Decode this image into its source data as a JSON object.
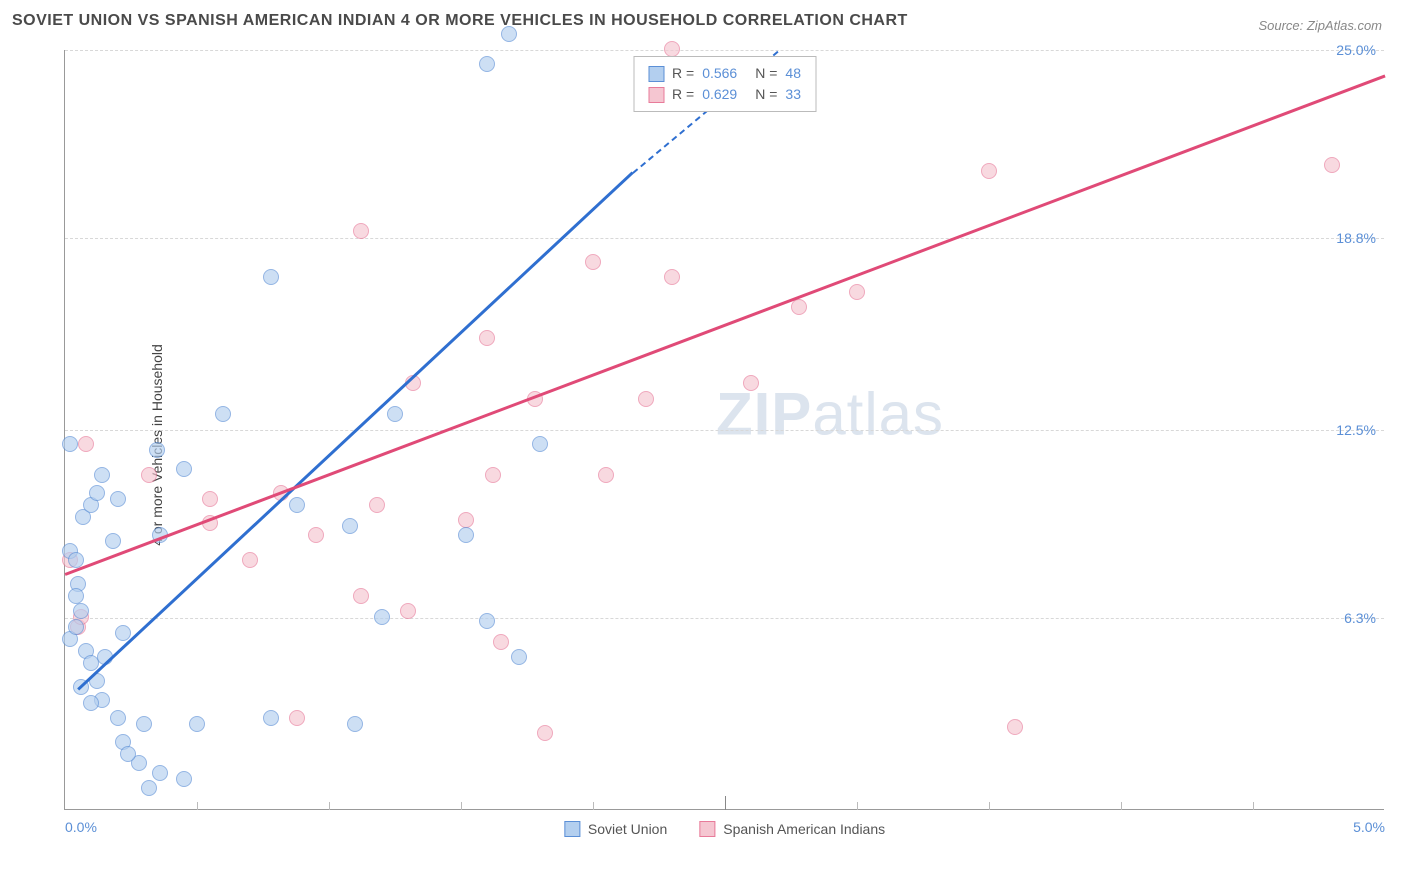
{
  "title": "SOVIET UNION VS SPANISH AMERICAN INDIAN 4 OR MORE VEHICLES IN HOUSEHOLD CORRELATION CHART",
  "source": "Source: ZipAtlas.com",
  "watermark_pre": "ZIP",
  "watermark_post": "atlas",
  "y_axis_label": "4 or more Vehicles in Household",
  "colors": {
    "series1_fill": "#b3cfef",
    "series1_stroke": "#5b8fd6",
    "series1_line": "#2f6fd0",
    "series2_fill": "#f5c6d1",
    "series2_stroke": "#e87b9a",
    "series2_line": "#e04a77",
    "grid": "#d8d8d8",
    "axis": "#999999",
    "tick_text": "#5b8fd6",
    "title_text": "#4a4a4a"
  },
  "axes": {
    "x_min": 0.0,
    "x_max": 5.0,
    "y_min": 0.0,
    "y_max": 25.0,
    "y_ticks": [
      6.3,
      12.5,
      18.8,
      25.0
    ],
    "y_tick_labels": [
      "6.3%",
      "12.5%",
      "18.8%",
      "25.0%"
    ],
    "x_ticks": [
      0.0,
      2.5,
      5.0
    ],
    "x_tick_labels": [
      "0.0%",
      "",
      "5.0%"
    ],
    "x_minor_gridlines": [
      0.5,
      1.0,
      1.5,
      2.0,
      2.5,
      3.0,
      3.5,
      4.0,
      4.5
    ]
  },
  "correlation_box": {
    "rows": [
      {
        "swatch_fill": "#b3cfef",
        "swatch_stroke": "#5b8fd6",
        "r_label": "R =",
        "r_value": "0.566",
        "n_label": "N =",
        "n_value": "48"
      },
      {
        "swatch_fill": "#f5c6d1",
        "swatch_stroke": "#e87b9a",
        "r_label": "R =",
        "r_value": "0.629",
        "n_label": "N =",
        "n_value": "33"
      }
    ]
  },
  "legend": {
    "items": [
      {
        "swatch_fill": "#b3cfef",
        "swatch_stroke": "#5b8fd6",
        "label": "Soviet Union"
      },
      {
        "swatch_fill": "#f5c6d1",
        "swatch_stroke": "#e87b9a",
        "label": "Spanish American Indians"
      }
    ]
  },
  "trend_lines": {
    "series1": {
      "x1": 0.05,
      "y1": 4.0,
      "x2": 2.15,
      "y2": 21.0,
      "x2_dash": 2.7,
      "y2_dash": 25.0,
      "color": "#2f6fd0"
    },
    "series2": {
      "x1": 0.0,
      "y1": 7.8,
      "x2": 5.0,
      "y2": 24.2,
      "color": "#e04a77"
    }
  },
  "series1_points": [
    [
      0.02,
      8.5
    ],
    [
      0.04,
      8.2
    ],
    [
      0.02,
      5.6
    ],
    [
      0.06,
      6.5
    ],
    [
      0.04,
      6.0
    ],
    [
      0.08,
      5.2
    ],
    [
      0.05,
      7.4
    ],
    [
      0.1,
      4.8
    ],
    [
      0.12,
      4.2
    ],
    [
      0.14,
      3.6
    ],
    [
      0.2,
      3.0
    ],
    [
      0.22,
      2.2
    ],
    [
      0.28,
      1.5
    ],
    [
      0.32,
      0.7
    ],
    [
      0.36,
      1.2
    ],
    [
      0.3,
      2.8
    ],
    [
      0.24,
      1.8
    ],
    [
      0.15,
      5.0
    ],
    [
      0.07,
      9.6
    ],
    [
      0.1,
      10.0
    ],
    [
      0.12,
      10.4
    ],
    [
      0.18,
      8.8
    ],
    [
      0.2,
      10.2
    ],
    [
      0.14,
      11.0
    ],
    [
      0.02,
      12.0
    ],
    [
      0.22,
      5.8
    ],
    [
      0.36,
      9.0
    ],
    [
      0.45,
      11.2
    ],
    [
      0.78,
      3.0
    ],
    [
      0.6,
      13.0
    ],
    [
      1.1,
      2.8
    ],
    [
      1.2,
      6.3
    ],
    [
      1.6,
      6.2
    ],
    [
      1.72,
      5.0
    ],
    [
      0.78,
      17.5
    ],
    [
      0.88,
      10.0
    ],
    [
      1.08,
      9.3
    ],
    [
      1.25,
      13.0
    ],
    [
      1.52,
      9.0
    ],
    [
      1.6,
      24.5
    ],
    [
      1.68,
      25.5
    ],
    [
      1.8,
      12.0
    ],
    [
      0.35,
      11.8
    ],
    [
      0.5,
      2.8
    ],
    [
      0.45,
      1.0
    ],
    [
      0.1,
      3.5
    ],
    [
      0.06,
      4.0
    ],
    [
      0.04,
      7.0
    ]
  ],
  "series2_points": [
    [
      0.02,
      8.2
    ],
    [
      0.05,
      6.0
    ],
    [
      0.06,
      6.3
    ],
    [
      0.08,
      12.0
    ],
    [
      0.32,
      11.0
    ],
    [
      0.55,
      9.4
    ],
    [
      0.55,
      10.2
    ],
    [
      0.7,
      8.2
    ],
    [
      0.82,
      10.4
    ],
    [
      0.88,
      3.0
    ],
    [
      0.95,
      9.0
    ],
    [
      1.12,
      19.0
    ],
    [
      1.12,
      7.0
    ],
    [
      1.18,
      10.0
    ],
    [
      1.32,
      14.0
    ],
    [
      1.3,
      6.5
    ],
    [
      1.52,
      9.5
    ],
    [
      1.6,
      15.5
    ],
    [
      1.62,
      11.0
    ],
    [
      1.65,
      5.5
    ],
    [
      1.78,
      13.5
    ],
    [
      1.82,
      2.5
    ],
    [
      2.0,
      18.0
    ],
    [
      2.05,
      11.0
    ],
    [
      2.2,
      13.5
    ],
    [
      2.3,
      17.5
    ],
    [
      2.3,
      25.0
    ],
    [
      2.6,
      14.0
    ],
    [
      2.78,
      16.5
    ],
    [
      3.0,
      17.0
    ],
    [
      3.5,
      21.0
    ],
    [
      3.6,
      2.7
    ],
    [
      4.8,
      21.2
    ]
  ]
}
